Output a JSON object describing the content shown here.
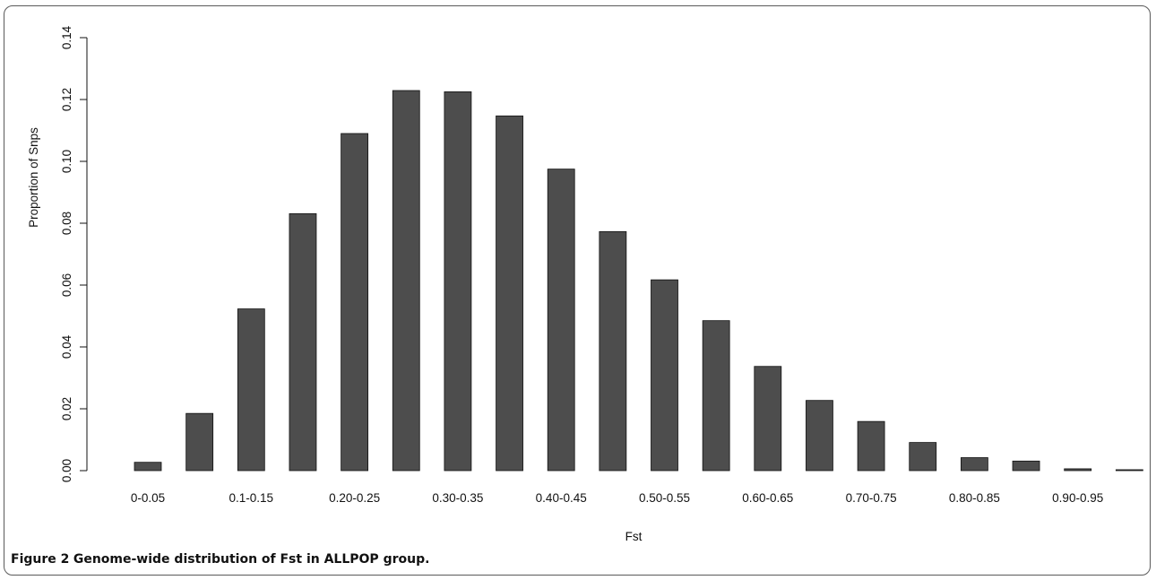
{
  "caption": {
    "label": "Figure 2",
    "text": "Genome-wide distribution of Fst in ALLPOP group."
  },
  "chart_data": {
    "type": "bar",
    "xlabel": "Fst",
    "ylabel": "Proportion of Snps",
    "ylim": [
      0,
      0.14
    ],
    "yticks": [
      "0.00",
      "0.02",
      "0.04",
      "0.06",
      "0.08",
      "0.10",
      "0.12",
      "0.14"
    ],
    "categories": [
      "0-0.05",
      "0.05-0.10",
      "0.1-0.15",
      "0.15-0.20",
      "0.20-0.25",
      "0.25-0.30",
      "0.30-0.35",
      "0.35-0.40",
      "0.40-0.45",
      "0.45-0.50",
      "0.50-0.55",
      "0.55-0.60",
      "0.60-0.65",
      "0.65-0.70",
      "0.70-0.75",
      "0.75-0.80",
      "0.80-0.85",
      "0.85-0.90",
      "0.90-0.95",
      "0.95-1.00"
    ],
    "shown_tick_labels": [
      "0-0.05",
      "0.1-0.15",
      "0.20-0.25",
      "0.30-0.35",
      "0.40-0.45",
      "0.50-0.55",
      "0.60-0.65",
      "0.70-0.75",
      "0.80-0.85",
      "0.90-0.95"
    ],
    "values": [
      0.0027,
      0.0185,
      0.0523,
      0.0831,
      0.109,
      0.1229,
      0.1225,
      0.1147,
      0.0975,
      0.0773,
      0.0617,
      0.0485,
      0.0337,
      0.0227,
      0.0159,
      0.0091,
      0.0042,
      0.0031,
      0.0006,
      0.0003
    ],
    "bar_color": "#4d4d4d",
    "grid": false
  }
}
